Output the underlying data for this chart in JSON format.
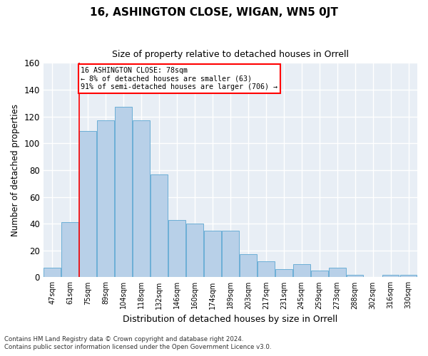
{
  "title": "16, ASHINGTON CLOSE, WIGAN, WN5 0JT",
  "subtitle": "Size of property relative to detached houses in Orrell",
  "xlabel": "Distribution of detached houses by size in Orrell",
  "ylabel": "Number of detached properties",
  "categories": [
    "47sqm",
    "61sqm",
    "75sqm",
    "89sqm",
    "104sqm",
    "118sqm",
    "132sqm",
    "146sqm",
    "160sqm",
    "174sqm",
    "189sqm",
    "203sqm",
    "217sqm",
    "231sqm",
    "245sqm",
    "259sqm",
    "273sqm",
    "288sqm",
    "302sqm",
    "316sqm",
    "330sqm"
  ],
  "values": [
    7,
    41,
    109,
    117,
    127,
    117,
    77,
    43,
    40,
    35,
    35,
    17,
    12,
    6,
    10,
    5,
    7,
    2,
    0,
    2,
    2
  ],
  "bar_color": "#b8d0e8",
  "bar_edge_color": "#6baed6",
  "background_color": "#e8eef5",
  "grid_color": "#ffffff",
  "fig_facecolor": "#ffffff",
  "ylim": [
    0,
    160
  ],
  "yticks": [
    0,
    20,
    40,
    60,
    80,
    100,
    120,
    140,
    160
  ],
  "property_line_index": 1.5,
  "annotation_line1": "16 ASHINGTON CLOSE: 78sqm",
  "annotation_line2": "← 8% of detached houses are smaller (63)",
  "annotation_line3": "91% of semi-detached houses are larger (706) →",
  "footer_line1": "Contains HM Land Registry data © Crown copyright and database right 2024.",
  "footer_line2": "Contains public sector information licensed under the Open Government Licence v3.0."
}
